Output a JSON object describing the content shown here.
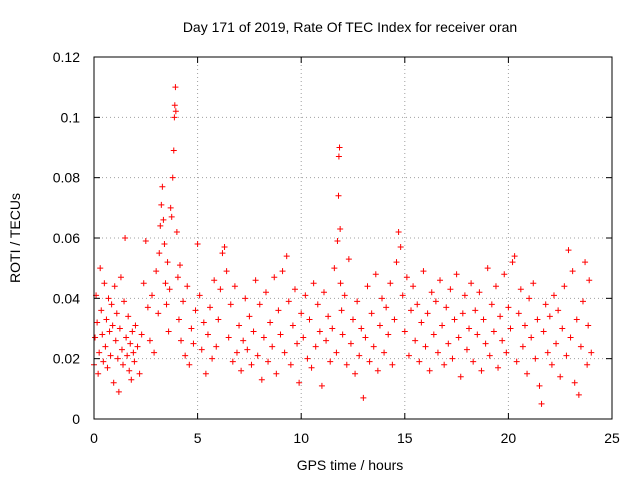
{
  "chart_data": {
    "type": "scatter",
    "title": "Day 171 of 2019, Rate Of TEC Index for receiver oran",
    "xlabel": "GPS time / hours",
    "ylabel": "ROTI / TECUs",
    "xlim": [
      0,
      25
    ],
    "ylim": [
      0,
      0.12
    ],
    "xticks": [
      0,
      5,
      10,
      15,
      20,
      25
    ],
    "xtick_labels": [
      "0",
      "5",
      "10",
      "15",
      "20",
      "25"
    ],
    "yticks": [
      0,
      0.02,
      0.04,
      0.06,
      0.08,
      0.1,
      0.12
    ],
    "ytick_labels": [
      "0",
      "0.02",
      "0.04",
      "0.06",
      "0.08",
      "0.1",
      "0.12"
    ],
    "grid": true,
    "marker": "+",
    "color": "#ff0000",
    "x_extent_hours": [
      0,
      24
    ],
    "series": [
      {
        "name": "ROTI",
        "points": [
          [
            0.0,
            0.018
          ],
          [
            0.05,
            0.027
          ],
          [
            0.1,
            0.041
          ],
          [
            0.15,
            0.032
          ],
          [
            0.2,
            0.015
          ],
          [
            0.25,
            0.022
          ],
          [
            0.3,
            0.05
          ],
          [
            0.35,
            0.036
          ],
          [
            0.4,
            0.028
          ],
          [
            0.45,
            0.019
          ],
          [
            0.5,
            0.045
          ],
          [
            0.55,
            0.024
          ],
          [
            0.6,
            0.033
          ],
          [
            0.65,
            0.017
          ],
          [
            0.7,
            0.04
          ],
          [
            0.75,
            0.029
          ],
          [
            0.8,
            0.021
          ],
          [
            0.85,
            0.038
          ],
          [
            0.9,
            0.031
          ],
          [
            0.95,
            0.012
          ],
          [
            1.0,
            0.044
          ],
          [
            1.05,
            0.026
          ],
          [
            1.1,
            0.035
          ],
          [
            1.15,
            0.02
          ],
          [
            1.2,
            0.009
          ],
          [
            1.25,
            0.03
          ],
          [
            1.3,
            0.047
          ],
          [
            1.35,
            0.023
          ],
          [
            1.4,
            0.018
          ],
          [
            1.45,
            0.039
          ],
          [
            1.5,
            0.06
          ],
          [
            1.55,
            0.027
          ],
          [
            1.6,
            0.021
          ],
          [
            1.65,
            0.034
          ],
          [
            1.7,
            0.016
          ],
          [
            1.75,
            0.025
          ],
          [
            1.8,
            0.013
          ],
          [
            1.85,
            0.029
          ],
          [
            1.9,
            0.022
          ],
          [
            1.95,
            0.019
          ],
          [
            2.0,
            0.031
          ],
          [
            2.1,
            0.024
          ],
          [
            2.2,
            0.015
          ],
          [
            2.3,
            0.028
          ],
          [
            2.4,
            0.045
          ],
          [
            2.5,
            0.059
          ],
          [
            2.6,
            0.037
          ],
          [
            2.7,
            0.026
          ],
          [
            2.8,
            0.041
          ],
          [
            2.9,
            0.022
          ],
          [
            3.0,
            0.049
          ],
          [
            3.1,
            0.035
          ],
          [
            3.15,
            0.055
          ],
          [
            3.2,
            0.064
          ],
          [
            3.25,
            0.071
          ],
          [
            3.3,
            0.077
          ],
          [
            3.35,
            0.066
          ],
          [
            3.4,
            0.058
          ],
          [
            3.45,
            0.045
          ],
          [
            3.5,
            0.038
          ],
          [
            3.55,
            0.052
          ],
          [
            3.6,
            0.029
          ],
          [
            3.65,
            0.043
          ],
          [
            3.7,
            0.07
          ],
          [
            3.75,
            0.067
          ],
          [
            3.8,
            0.08
          ],
          [
            3.85,
            0.089
          ],
          [
            3.88,
            0.1
          ],
          [
            3.9,
            0.104
          ],
          [
            3.93,
            0.11
          ],
          [
            3.95,
            0.102
          ],
          [
            4.0,
            0.062
          ],
          [
            4.05,
            0.047
          ],
          [
            4.1,
            0.033
          ],
          [
            4.15,
            0.051
          ],
          [
            4.2,
            0.026
          ],
          [
            4.3,
            0.039
          ],
          [
            4.4,
            0.021
          ],
          [
            4.5,
            0.044
          ],
          [
            4.6,
            0.018
          ],
          [
            4.7,
            0.03
          ],
          [
            4.8,
            0.025
          ],
          [
            4.9,
            0.036
          ],
          [
            5.0,
            0.058
          ],
          [
            5.1,
            0.041
          ],
          [
            5.2,
            0.023
          ],
          [
            5.3,
            0.032
          ],
          [
            5.4,
            0.015
          ],
          [
            5.5,
            0.028
          ],
          [
            5.6,
            0.037
          ],
          [
            5.7,
            0.02
          ],
          [
            5.8,
            0.046
          ],
          [
            5.9,
            0.024
          ],
          [
            6.0,
            0.033
          ],
          [
            6.1,
            0.043
          ],
          [
            6.2,
            0.055
          ],
          [
            6.3,
            0.057
          ],
          [
            6.4,
            0.049
          ],
          [
            6.5,
            0.027
          ],
          [
            6.6,
            0.038
          ],
          [
            6.7,
            0.019
          ],
          [
            6.8,
            0.044
          ],
          [
            6.9,
            0.022
          ],
          [
            7.0,
            0.031
          ],
          [
            7.1,
            0.016
          ],
          [
            7.2,
            0.026
          ],
          [
            7.3,
            0.04
          ],
          [
            7.4,
            0.023
          ],
          [
            7.5,
            0.034
          ],
          [
            7.6,
            0.018
          ],
          [
            7.7,
            0.029
          ],
          [
            7.8,
            0.046
          ],
          [
            7.9,
            0.021
          ],
          [
            8.0,
            0.038
          ],
          [
            8.1,
            0.013
          ],
          [
            8.2,
            0.027
          ],
          [
            8.3,
            0.042
          ],
          [
            8.4,
            0.019
          ],
          [
            8.5,
            0.032
          ],
          [
            8.6,
            0.024
          ],
          [
            8.7,
            0.047
          ],
          [
            8.8,
            0.015
          ],
          [
            8.9,
            0.036
          ],
          [
            9.0,
            0.028
          ],
          [
            9.1,
            0.049
          ],
          [
            9.2,
            0.022
          ],
          [
            9.3,
            0.054
          ],
          [
            9.4,
            0.039
          ],
          [
            9.5,
            0.018
          ],
          [
            9.6,
            0.031
          ],
          [
            9.7,
            0.043
          ],
          [
            9.8,
            0.025
          ],
          [
            9.9,
            0.012
          ],
          [
            10.0,
            0.035
          ],
          [
            10.1,
            0.027
          ],
          [
            10.2,
            0.041
          ],
          [
            10.3,
            0.02
          ],
          [
            10.4,
            0.033
          ],
          [
            10.5,
            0.017
          ],
          [
            10.6,
            0.045
          ],
          [
            10.7,
            0.024
          ],
          [
            10.8,
            0.038
          ],
          [
            10.9,
            0.029
          ],
          [
            11.0,
            0.011
          ],
          [
            11.1,
            0.042
          ],
          [
            11.2,
            0.026
          ],
          [
            11.3,
            0.034
          ],
          [
            11.4,
            0.019
          ],
          [
            11.5,
            0.03
          ],
          [
            11.6,
            0.05
          ],
          [
            11.7,
            0.022
          ],
          [
            11.75,
            0.059
          ],
          [
            11.8,
            0.074
          ],
          [
            11.82,
            0.087
          ],
          [
            11.85,
            0.09
          ],
          [
            11.88,
            0.063
          ],
          [
            11.9,
            0.045
          ],
          [
            11.95,
            0.036
          ],
          [
            12.0,
            0.028
          ],
          [
            12.1,
            0.041
          ],
          [
            12.2,
            0.018
          ],
          [
            12.3,
            0.053
          ],
          [
            12.4,
            0.025
          ],
          [
            12.5,
            0.033
          ],
          [
            12.6,
            0.015
          ],
          [
            12.7,
            0.039
          ],
          [
            12.8,
            0.021
          ],
          [
            12.9,
            0.03
          ],
          [
            13.0,
            0.007
          ],
          [
            13.1,
            0.027
          ],
          [
            13.2,
            0.044
          ],
          [
            13.3,
            0.019
          ],
          [
            13.4,
            0.035
          ],
          [
            13.5,
            0.024
          ],
          [
            13.6,
            0.048
          ],
          [
            13.7,
            0.016
          ],
          [
            13.8,
            0.031
          ],
          [
            13.9,
            0.04
          ],
          [
            14.0,
            0.022
          ],
          [
            14.1,
            0.037
          ],
          [
            14.2,
            0.028
          ],
          [
            14.3,
            0.045
          ],
          [
            14.4,
            0.018
          ],
          [
            14.5,
            0.033
          ],
          [
            14.6,
            0.052
          ],
          [
            14.7,
            0.062
          ],
          [
            14.8,
            0.057
          ],
          [
            14.9,
            0.041
          ],
          [
            15.0,
            0.029
          ],
          [
            15.1,
            0.047
          ],
          [
            15.2,
            0.021
          ],
          [
            15.3,
            0.036
          ],
          [
            15.4,
            0.044
          ],
          [
            15.5,
            0.026
          ],
          [
            15.6,
            0.038
          ],
          [
            15.7,
            0.019
          ],
          [
            15.8,
            0.032
          ],
          [
            15.9,
            0.049
          ],
          [
            16.0,
            0.024
          ],
          [
            16.1,
            0.035
          ],
          [
            16.2,
            0.016
          ],
          [
            16.3,
            0.042
          ],
          [
            16.4,
            0.028
          ],
          [
            16.5,
            0.039
          ],
          [
            16.6,
            0.022
          ],
          [
            16.7,
            0.046
          ],
          [
            16.8,
            0.031
          ],
          [
            16.9,
            0.018
          ],
          [
            17.0,
            0.037
          ],
          [
            17.1,
            0.025
          ],
          [
            17.2,
            0.043
          ],
          [
            17.3,
            0.02
          ],
          [
            17.4,
            0.033
          ],
          [
            17.5,
            0.048
          ],
          [
            17.6,
            0.027
          ],
          [
            17.7,
            0.014
          ],
          [
            17.8,
            0.035
          ],
          [
            17.9,
            0.041
          ],
          [
            18.0,
            0.023
          ],
          [
            18.1,
            0.03
          ],
          [
            18.2,
            0.045
          ],
          [
            18.3,
            0.019
          ],
          [
            18.4,
            0.036
          ],
          [
            18.5,
            0.028
          ],
          [
            18.6,
            0.042
          ],
          [
            18.7,
            0.016
          ],
          [
            18.8,
            0.033
          ],
          [
            18.9,
            0.025
          ],
          [
            19.0,
            0.05
          ],
          [
            19.1,
            0.021
          ],
          [
            19.2,
            0.038
          ],
          [
            19.3,
            0.029
          ],
          [
            19.4,
            0.044
          ],
          [
            19.5,
            0.017
          ],
          [
            19.6,
            0.034
          ],
          [
            19.7,
            0.026
          ],
          [
            19.8,
            0.048
          ],
          [
            19.9,
            0.022
          ],
          [
            20.0,
            0.037
          ],
          [
            20.1,
            0.03
          ],
          [
            20.2,
            0.052
          ],
          [
            20.3,
            0.054
          ],
          [
            20.4,
            0.019
          ],
          [
            20.5,
            0.035
          ],
          [
            20.6,
            0.043
          ],
          [
            20.7,
            0.024
          ],
          [
            20.8,
            0.031
          ],
          [
            20.9,
            0.015
          ],
          [
            21.0,
            0.04
          ],
          [
            21.1,
            0.027
          ],
          [
            21.2,
            0.045
          ],
          [
            21.3,
            0.02
          ],
          [
            21.4,
            0.033
          ],
          [
            21.5,
            0.011
          ],
          [
            21.6,
            0.005
          ],
          [
            21.7,
            0.029
          ],
          [
            21.8,
            0.038
          ],
          [
            21.9,
            0.022
          ],
          [
            22.0,
            0.034
          ],
          [
            22.1,
            0.018
          ],
          [
            22.2,
            0.041
          ],
          [
            22.3,
            0.025
          ],
          [
            22.4,
            0.036
          ],
          [
            22.5,
            0.014
          ],
          [
            22.6,
            0.03
          ],
          [
            22.7,
            0.044
          ],
          [
            22.8,
            0.021
          ],
          [
            22.9,
            0.056
          ],
          [
            23.0,
            0.027
          ],
          [
            23.1,
            0.049
          ],
          [
            23.2,
            0.012
          ],
          [
            23.3,
            0.033
          ],
          [
            23.4,
            0.008
          ],
          [
            23.5,
            0.024
          ],
          [
            23.6,
            0.039
          ],
          [
            23.7,
            0.052
          ],
          [
            23.8,
            0.018
          ],
          [
            23.85,
            0.031
          ],
          [
            23.9,
            0.046
          ],
          [
            24.0,
            0.022
          ]
        ]
      }
    ]
  }
}
